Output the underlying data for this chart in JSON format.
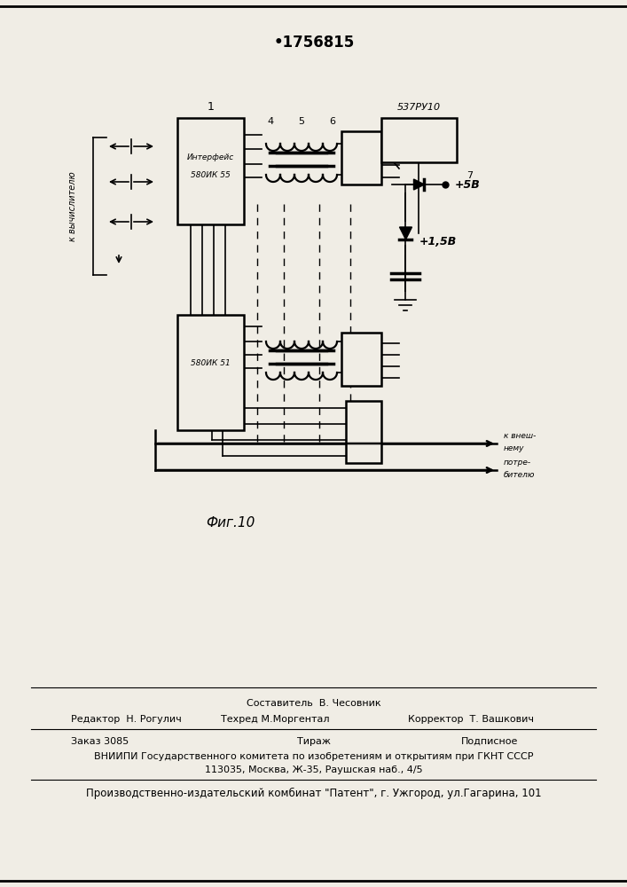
{
  "patent_number": "•1756815",
  "fig_caption": "Фиг.10",
  "bg_color": "#f0ede5",
  "footer": {
    "line1_col2": "Составитель  В. Чесовник",
    "line2_col1": "Редактор  Н. Рогулич",
    "line2_col2": "Техред М.Моргентал",
    "line2_col3": "Корректор  Т. Вашкович",
    "line3_col1": "Заказ 3085",
    "line3_col2": "Тираж",
    "line3_col3": "Подписное",
    "line4": "ВНИИПИ Государственного комитета по изобретениям и открытиям при ГКНТ СССР",
    "line5": "113035, Москва, Ж-35, Раушская наб., 4/5",
    "line6": "Производственно-издательский комбинат \"Патент\", г. Ужгород, ул.Гагарина, 101"
  }
}
